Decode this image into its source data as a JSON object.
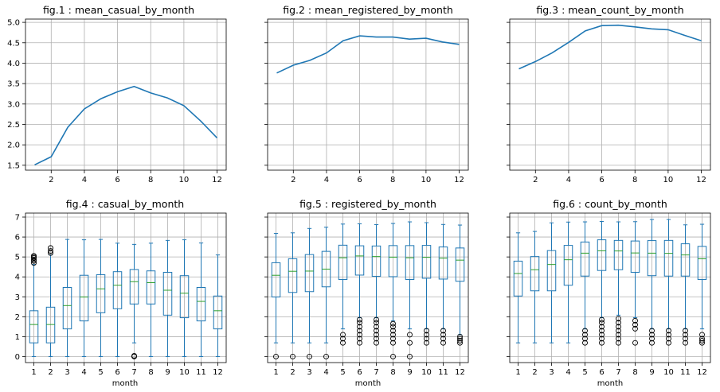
{
  "figure": {
    "line_color": "#1f77b4",
    "box_color": "#1f77b4",
    "median_color": "#2ca02c",
    "grid_color": "#b0b0b0"
  },
  "chart_data": [
    {
      "type": "line",
      "title": "fig.1 : mean_casual_by_month",
      "xlabel": "",
      "ylabel": "",
      "x": [
        1,
        2,
        3,
        4,
        5,
        6,
        7,
        8,
        9,
        10,
        11,
        12
      ],
      "y": [
        1.51,
        1.71,
        2.43,
        2.88,
        3.13,
        3.3,
        3.43,
        3.27,
        3.15,
        2.96,
        2.59,
        2.17
      ],
      "xticks": [
        2,
        4,
        6,
        8,
        10,
        12
      ],
      "yticks": [
        1.5,
        2.0,
        2.5,
        3.0,
        3.5,
        4.0,
        4.5,
        5.0
      ],
      "ytick_labels": [
        "1.5",
        "2.0",
        "2.5",
        "3.0",
        "3.5",
        "4.0",
        "4.5",
        "5.0"
      ],
      "xlim": [
        0.45,
        12.55
      ],
      "ylim": [
        1.38,
        5.08
      ],
      "grid": true
    },
    {
      "type": "line",
      "title": "fig.2 : mean_registered_by_month",
      "xlabel": "",
      "ylabel": "",
      "x": [
        1,
        2,
        3,
        4,
        5,
        6,
        7,
        8,
        9,
        10,
        11,
        12
      ],
      "y": [
        3.76,
        3.95,
        4.07,
        4.25,
        4.55,
        4.67,
        4.64,
        4.64,
        4.59,
        4.61,
        4.52,
        4.46
      ],
      "xticks": [
        2,
        4,
        6,
        8,
        10,
        12
      ],
      "yticks": [
        1.5,
        2.0,
        2.5,
        3.0,
        3.5,
        4.0,
        4.5,
        5.0
      ],
      "xlim": [
        0.45,
        12.55
      ],
      "ylim": [
        1.38,
        5.08
      ],
      "grid": true
    },
    {
      "type": "line",
      "title": "fig.3 : mean_count_by_month",
      "xlabel": "",
      "ylabel": "",
      "x": [
        1,
        2,
        3,
        4,
        5,
        6,
        7,
        8,
        9,
        10,
        11,
        12
      ],
      "y": [
        3.86,
        4.04,
        4.25,
        4.51,
        4.79,
        4.92,
        4.93,
        4.89,
        4.84,
        4.82,
        4.68,
        4.55
      ],
      "xticks": [
        2,
        4,
        6,
        8,
        10,
        12
      ],
      "yticks": [
        1.5,
        2.0,
        2.5,
        3.0,
        3.5,
        4.0,
        4.5,
        5.0
      ],
      "xlim": [
        0.45,
        12.55
      ],
      "ylim": [
        1.38,
        5.08
      ],
      "grid": true
    },
    {
      "type": "box",
      "title": "fig.4 : casual_by_month",
      "xlabel": "month",
      "ylabel": "",
      "categories": [
        "1",
        "2",
        "3",
        "4",
        "5",
        "6",
        "7",
        "8",
        "9",
        "10",
        "11",
        "12"
      ],
      "yticks": [
        0,
        1,
        2,
        3,
        4,
        5,
        6,
        7
      ],
      "ylim": [
        -0.3,
        7.2
      ],
      "grid": true,
      "boxes": [
        {
          "whislo": 0,
          "q1": 0.69,
          "med": 1.61,
          "q3": 2.3,
          "whishi": 4.62,
          "fliers": [
            4.7,
            4.8,
            4.87,
            4.95,
            5.0,
            5.06
          ]
        },
        {
          "whislo": 0,
          "q1": 0.69,
          "med": 1.61,
          "q3": 2.48,
          "whishi": 5.1,
          "fliers": [
            5.2,
            5.3,
            5.45
          ]
        },
        {
          "whislo": 0,
          "q1": 1.39,
          "med": 2.56,
          "q3": 3.47,
          "whishi": 5.88,
          "fliers": []
        },
        {
          "whislo": 0,
          "q1": 1.79,
          "med": 2.99,
          "q3": 4.08,
          "whishi": 5.86,
          "fliers": []
        },
        {
          "whislo": 0,
          "q1": 2.2,
          "med": 3.4,
          "q3": 4.11,
          "whishi": 5.88,
          "fliers": []
        },
        {
          "whislo": 0,
          "q1": 2.4,
          "med": 3.58,
          "q3": 4.26,
          "whishi": 5.69,
          "fliers": []
        },
        {
          "whislo": 0.69,
          "q1": 2.64,
          "med": 3.76,
          "q3": 4.37,
          "whishi": 5.63,
          "fliers": [
            0,
            0.04
          ]
        },
        {
          "whislo": 0,
          "q1": 2.64,
          "med": 3.71,
          "q3": 4.3,
          "whishi": 5.69,
          "fliers": []
        },
        {
          "whislo": 0,
          "q1": 2.08,
          "med": 3.33,
          "q3": 4.23,
          "whishi": 5.83,
          "fliers": []
        },
        {
          "whislo": 0,
          "q1": 1.95,
          "med": 3.18,
          "q3": 4.06,
          "whishi": 5.86,
          "fliers": []
        },
        {
          "whislo": 0,
          "q1": 1.79,
          "med": 2.77,
          "q3": 3.47,
          "whishi": 5.7,
          "fliers": []
        },
        {
          "whislo": 0,
          "q1": 1.39,
          "med": 2.3,
          "q3": 3.04,
          "whishi": 5.1,
          "fliers": []
        }
      ]
    },
    {
      "type": "box",
      "title": "fig.5 : registered_by_month",
      "xlabel": "month",
      "ylabel": "",
      "categories": [
        "1",
        "2",
        "3",
        "4",
        "5",
        "6",
        "7",
        "8",
        "9",
        "10",
        "11",
        "12"
      ],
      "yticks": [
        0,
        1,
        2,
        3,
        4,
        5,
        6,
        7
      ],
      "ylim": [
        -0.3,
        7.2
      ],
      "grid": true,
      "boxes": [
        {
          "whislo": 0.69,
          "q1": 2.99,
          "med": 4.08,
          "q3": 4.71,
          "whishi": 6.18,
          "fliers": [
            0
          ]
        },
        {
          "whislo": 0.69,
          "q1": 3.22,
          "med": 4.28,
          "q3": 4.91,
          "whishi": 6.21,
          "fliers": [
            0
          ]
        },
        {
          "whislo": 0.69,
          "q1": 3.26,
          "med": 4.29,
          "q3": 5.12,
          "whishi": 6.43,
          "fliers": [
            0
          ]
        },
        {
          "whislo": 0.69,
          "q1": 3.5,
          "med": 4.39,
          "q3": 5.28,
          "whishi": 6.49,
          "fliers": [
            0
          ]
        },
        {
          "whislo": 1.39,
          "q1": 3.87,
          "med": 4.96,
          "q3": 5.59,
          "whishi": 6.65,
          "fliers": [
            0.69,
            0.9,
            1.1
          ]
        },
        {
          "whislo": 1.95,
          "q1": 4.09,
          "med": 5.05,
          "q3": 5.56,
          "whishi": 6.66,
          "fliers": [
            0.69,
            0.9,
            1.1,
            1.3,
            1.5,
            1.7,
            1.85
          ]
        },
        {
          "whislo": 1.95,
          "q1": 4.03,
          "med": 5.02,
          "q3": 5.55,
          "whishi": 6.62,
          "fliers": [
            0.69,
            0.9,
            1.1,
            1.3,
            1.5,
            1.7,
            1.85
          ]
        },
        {
          "whislo": 1.79,
          "q1": 4.01,
          "med": 4.99,
          "q3": 5.57,
          "whishi": 6.68,
          "fliers": [
            0,
            0.69,
            0.9,
            1.1,
            1.3,
            1.5,
            1.65
          ]
        },
        {
          "whislo": 1.39,
          "q1": 3.87,
          "med": 4.96,
          "q3": 5.57,
          "whishi": 6.76,
          "fliers": [
            0,
            0.69,
            1.1
          ]
        },
        {
          "whislo": 1.39,
          "q1": 3.93,
          "med": 4.98,
          "q3": 5.58,
          "whishi": 6.72,
          "fliers": [
            0.69,
            0.9,
            1.1,
            1.3
          ]
        },
        {
          "whislo": 1.39,
          "q1": 3.89,
          "med": 4.94,
          "q3": 5.5,
          "whishi": 6.63,
          "fliers": [
            0.69,
            0.9,
            1.1,
            1.3
          ]
        },
        {
          "whislo": 1.1,
          "q1": 3.78,
          "med": 4.84,
          "q3": 5.45,
          "whishi": 6.6,
          "fliers": [
            0.69,
            0.8,
            0.9,
            1.0
          ]
        }
      ]
    },
    {
      "type": "box",
      "title": "fig.6 : count_by_month",
      "xlabel": "month",
      "ylabel": "",
      "categories": [
        "1",
        "2",
        "3",
        "4",
        "5",
        "6",
        "7",
        "8",
        "9",
        "10",
        "11",
        "12"
      ],
      "yticks": [
        0,
        1,
        2,
        3,
        4,
        5,
        6,
        7
      ],
      "ylim": [
        -0.3,
        7.2
      ],
      "grid": true,
      "boxes": [
        {
          "whislo": 0.69,
          "q1": 3.04,
          "med": 4.17,
          "q3": 4.79,
          "whishi": 6.21,
          "fliers": []
        },
        {
          "whislo": 0.69,
          "q1": 3.3,
          "med": 4.36,
          "q3": 5.02,
          "whishi": 6.28,
          "fliers": []
        },
        {
          "whislo": 0.69,
          "q1": 3.3,
          "med": 4.62,
          "q3": 5.32,
          "whishi": 6.71,
          "fliers": []
        },
        {
          "whislo": 0.69,
          "q1": 3.58,
          "med": 4.86,
          "q3": 5.58,
          "whishi": 6.75,
          "fliers": []
        },
        {
          "whislo": 1.39,
          "q1": 4.04,
          "med": 5.19,
          "q3": 5.75,
          "whishi": 6.76,
          "fliers": [
            0.69,
            0.9,
            1.1,
            1.3
          ]
        },
        {
          "whislo": 1.95,
          "q1": 4.32,
          "med": 5.31,
          "q3": 5.86,
          "whishi": 6.78,
          "fliers": [
            0.69,
            0.9,
            1.1,
            1.3,
            1.5,
            1.7,
            1.85
          ]
        },
        {
          "whislo": 2.08,
          "q1": 4.36,
          "med": 5.3,
          "q3": 5.83,
          "whishi": 6.76,
          "fliers": [
            0.69,
            0.9,
            1.1,
            1.3,
            1.5,
            1.7,
            1.9
          ]
        },
        {
          "whislo": 1.95,
          "q1": 4.23,
          "med": 5.2,
          "q3": 5.8,
          "whishi": 6.77,
          "fliers": [
            0.69,
            1.4,
            1.6,
            1.8
          ]
        },
        {
          "whislo": 1.39,
          "q1": 4.06,
          "med": 5.19,
          "q3": 5.82,
          "whishi": 6.88,
          "fliers": [
            0.69,
            0.9,
            1.1,
            1.3
          ]
        },
        {
          "whislo": 1.39,
          "q1": 4.04,
          "med": 5.18,
          "q3": 5.83,
          "whishi": 6.88,
          "fliers": [
            0.69,
            0.9,
            1.1,
            1.3
          ]
        },
        {
          "whislo": 1.39,
          "q1": 4.04,
          "med": 5.1,
          "q3": 5.66,
          "whishi": 6.61,
          "fliers": [
            0.69,
            0.9,
            1.1,
            1.3
          ]
        },
        {
          "whislo": 1.39,
          "q1": 3.87,
          "med": 4.91,
          "q3": 5.53,
          "whishi": 6.64,
          "fliers": [
            0.69,
            0.8,
            0.9,
            1.1
          ]
        }
      ]
    }
  ]
}
